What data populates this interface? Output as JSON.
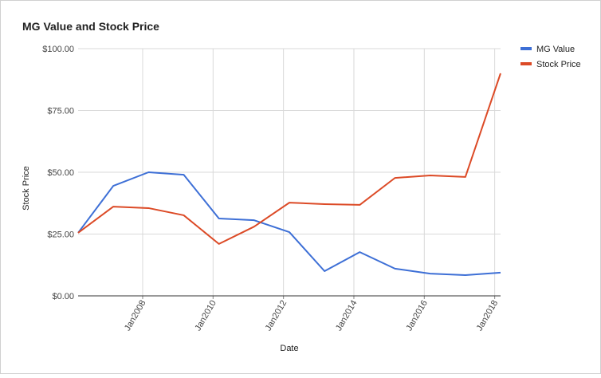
{
  "chart_data": {
    "type": "line",
    "title": "MG Value and Stock Price",
    "x_label": "Date",
    "y_label": "Stock Price",
    "x": [
      "2006-03",
      "2007-03",
      "2008-03",
      "2009-03",
      "2010-03",
      "2011-03",
      "2012-03",
      "2013-03",
      "2014-03",
      "2015-03",
      "2016-03",
      "2017-03",
      "2018-03"
    ],
    "series": [
      {
        "name": "MG Value",
        "color": "#3d6fd6",
        "values": [
          25.5,
          44.5,
          50,
          49,
          31.3,
          30.6,
          25.8,
          10,
          17.7,
          11,
          9,
          8.4,
          9.4
        ]
      },
      {
        "name": "Stock Price",
        "color": "#dc4a26",
        "values": [
          25.5,
          36.1,
          35.5,
          32.6,
          21,
          28,
          37.7,
          37.1,
          36.8,
          47.7,
          48.7,
          48.1,
          90
        ]
      }
    ],
    "xlim": [
      "2006-03",
      "2018-03"
    ],
    "xticks": [
      {
        "value": "2008-01",
        "label": "Jan2008"
      },
      {
        "value": "2010-01",
        "label": "Jan2010"
      },
      {
        "value": "2012-01",
        "label": "Jan2012"
      },
      {
        "value": "2014-01",
        "label": "Jan2014"
      },
      {
        "value": "2016-01",
        "label": "Jan2016"
      },
      {
        "value": "2018-01",
        "label": "Jan2018"
      }
    ],
    "ylim": [
      0,
      100
    ],
    "yticks": [
      {
        "value": 0,
        "label": "$0.00"
      },
      {
        "value": 25,
        "label": "$25.00"
      },
      {
        "value": 50,
        "label": "$50.00"
      },
      {
        "value": 75,
        "label": "$75.00"
      },
      {
        "value": 100,
        "label": "$100.00"
      }
    ],
    "grid": true,
    "legend_position": "right"
  }
}
